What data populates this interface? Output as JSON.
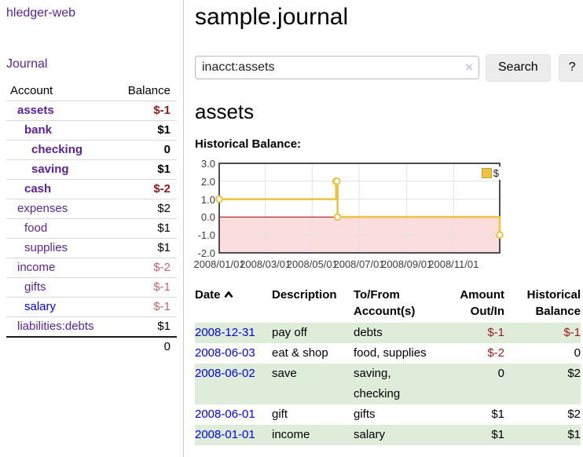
{
  "sidebar": {
    "app_title": "hledger-web",
    "journal_link": "Journal",
    "accounts_table": {
      "account_header": "Account",
      "balance_header": "Balance",
      "rows": [
        {
          "name": "assets",
          "balance": "$-1",
          "depth": 1,
          "bold": true,
          "name_color": "purple",
          "balance_color": "neg-strong"
        },
        {
          "name": "bank",
          "balance": "$1",
          "depth": 2,
          "bold": true,
          "name_color": "purple",
          "balance_color": "black"
        },
        {
          "name": "checking",
          "balance": "0",
          "depth": 3,
          "bold": true,
          "name_color": "purple",
          "balance_color": "black"
        },
        {
          "name": "saving",
          "balance": "$1",
          "depth": 3,
          "bold": true,
          "name_color": "purple",
          "balance_color": "black"
        },
        {
          "name": "cash",
          "balance": "$-2",
          "depth": 2,
          "bold": true,
          "name_color": "purple",
          "balance_color": "neg-strong"
        },
        {
          "name": "expenses",
          "balance": "$2",
          "depth": 1,
          "bold": false,
          "name_color": "purple",
          "balance_color": "black"
        },
        {
          "name": "food",
          "balance": "$1",
          "depth": 2,
          "bold": false,
          "name_color": "purple",
          "balance_color": "black"
        },
        {
          "name": "supplies",
          "balance": "$1",
          "depth": 2,
          "bold": false,
          "name_color": "purple",
          "balance_color": "black"
        },
        {
          "name": "income",
          "balance": "$-2",
          "depth": 1,
          "bold": false,
          "name_color": "purple",
          "balance_color": "neg-soft"
        },
        {
          "name": "gifts",
          "balance": "$-1",
          "depth": 2,
          "bold": false,
          "name_color": "purple",
          "balance_color": "neg-soft"
        },
        {
          "name": "salary",
          "balance": "$-1",
          "depth": 2,
          "bold": false,
          "name_color": "blue",
          "balance_color": "neg-soft"
        },
        {
          "name": "liabilities:debts",
          "balance": "$1",
          "depth": 1,
          "bold": false,
          "name_color": "purple",
          "balance_color": "black"
        }
      ],
      "total": "0"
    }
  },
  "header": {
    "title": "sample.journal"
  },
  "search": {
    "value": "inacct:assets",
    "clear_icon": "×",
    "button_label": "Search",
    "help_label": "?"
  },
  "main": {
    "account_title": "assets",
    "chart_title": "Historical Balance:"
  },
  "chart_data": {
    "type": "line",
    "title": "Historical Balance:",
    "steps": true,
    "series": [
      {
        "name": "$",
        "color": "#edc240",
        "points": [
          [
            "2008-01-01",
            1
          ],
          [
            "2008-06-01",
            2
          ],
          [
            "2008-06-02",
            2
          ],
          [
            "2008-06-03",
            0
          ],
          [
            "2008-12-31",
            -1
          ]
        ]
      }
    ],
    "x_range": [
      "2008-01-01",
      "2008-12-31"
    ],
    "x_ticks": [
      "2008/01/01",
      "2008/03/01",
      "2008/05/01",
      "2008/07/01",
      "2008/09/01",
      "2008/11/01"
    ],
    "y_ticks": [
      3.0,
      2.0,
      1.0,
      0.0,
      -1.0,
      -2.0
    ],
    "ylim": [
      -2,
      3
    ],
    "grid": true,
    "legend_position": "top-right",
    "negative_region_color": "#fcdddd",
    "zero_line_color": "#a40000"
  },
  "register": {
    "columns": [
      {
        "label": "Date",
        "align": "left",
        "sorted": "asc"
      },
      {
        "label": "Description",
        "align": "left"
      },
      {
        "label": "To/From Account(s)",
        "align": "left"
      },
      {
        "label": "Amount Out/In",
        "align": "right"
      },
      {
        "label": "Historical Balance",
        "align": "right"
      }
    ],
    "rows": [
      {
        "date": "2008-12-31",
        "description": "pay off",
        "accounts": "debts",
        "amount": "$-1",
        "amount_negative": true,
        "balance": "$-1",
        "balance_negative": true
      },
      {
        "date": "2008-06-03",
        "description": "eat & shop",
        "accounts": "food, supplies",
        "amount": "$-2",
        "amount_negative": true,
        "balance": "0",
        "balance_negative": false
      },
      {
        "date": "2008-06-02",
        "description": "save",
        "accounts": "saving, checking",
        "amount": "0",
        "amount_negative": false,
        "balance": "$2",
        "balance_negative": false
      },
      {
        "date": "2008-06-01",
        "description": "gift",
        "accounts": "gifts",
        "amount": "$1",
        "amount_negative": false,
        "balance": "$2",
        "balance_negative": false
      },
      {
        "date": "2008-01-01",
        "description": "income",
        "accounts": "salary",
        "amount": "$1",
        "amount_negative": false,
        "balance": "$1",
        "balance_negative": false
      }
    ]
  }
}
